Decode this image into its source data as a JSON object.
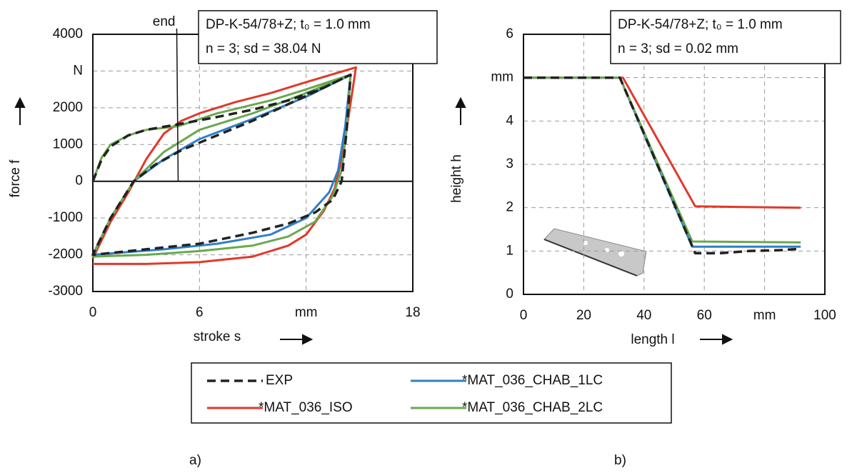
{
  "chart_data": [
    {
      "type": "line",
      "label": "a)",
      "x_label": "stroke s",
      "y_label": "force  f",
      "annotation": [
        "DP-K-54/78+Z; t₀ = 1.0 mm",
        "n = 3; sd = 38.04 N"
      ],
      "end_marker": {
        "label": "end",
        "x": 4.8
      },
      "xlim": [
        0,
        18
      ],
      "xticks": [
        0,
        6,
        {
          "value": 12,
          "label": "mm"
        },
        18
      ],
      "ylim": [
        -3000,
        4000
      ],
      "yticks": [
        -3000,
        -2000,
        -1000,
        0,
        1000,
        2000,
        {
          "value": 3000,
          "label": "N"
        },
        4000
      ],
      "grid": true,
      "series": [
        {
          "name": "*MAT_036_ISO",
          "color": "#e0392b",
          "dash": false,
          "x": [
            0,
            1,
            2,
            3,
            4,
            5,
            6,
            8,
            10,
            12,
            14.8,
            14.4,
            14.0,
            13.6,
            13,
            12,
            11,
            9,
            6,
            3,
            0
          ],
          "values": [
            -2100,
            -1100,
            -300,
            600,
            1300,
            1650,
            1850,
            2150,
            2400,
            2700,
            3100,
            1800,
            600,
            -200,
            -800,
            -1450,
            -1750,
            -2050,
            -2200,
            -2250,
            -2250
          ]
        },
        {
          "name": "*MAT_036_CHAB_1LC",
          "color": "#2f7fc9",
          "dash": false,
          "x": [
            0,
            1,
            2.3,
            4,
            6,
            9,
            12,
            14.5,
            14.2,
            13.8,
            13.3,
            12,
            10,
            7,
            4,
            0
          ],
          "values": [
            -2000,
            -1000,
            0,
            600,
            1150,
            1700,
            2300,
            2900,
            1500,
            300,
            -300,
            -1000,
            -1450,
            -1700,
            -1850,
            -2000
          ]
        },
        {
          "name": "*MAT_036_CHAB_2LC",
          "color": "#6aa84f",
          "dash": false,
          "x": [
            0,
            0.5,
            1,
            2,
            3,
            4.8,
            7,
            10,
            12,
            14.5,
            14.3,
            14,
            13.5,
            12.5,
            11,
            9,
            6,
            3,
            0,
            0.5,
            1,
            2.3,
            4,
            6,
            9,
            12,
            14.5
          ],
          "values": [
            0,
            650,
            1000,
            1250,
            1400,
            1500,
            1850,
            2200,
            2500,
            2900,
            1500,
            300,
            -400,
            -1100,
            -1500,
            -1750,
            -1900,
            -2000,
            -2050,
            -1500,
            -1000,
            0,
            800,
            1400,
            1850,
            2400,
            2900
          ]
        },
        {
          "name": "EXP",
          "color": "#222222",
          "dash": true,
          "x": [
            0,
            0.5,
            1,
            2,
            3,
            4.8,
            7,
            9,
            11,
            13,
            14.5,
            14.3,
            14.0,
            13.5,
            12.5,
            11,
            9,
            6,
            3,
            0,
            0.5,
            1,
            2.3,
            3.5,
            5,
            7,
            9,
            11,
            13,
            14.5
          ],
          "values": [
            0,
            600,
            950,
            1250,
            1400,
            1550,
            1750,
            1950,
            2200,
            2550,
            2900,
            1500,
            0,
            -500,
            -850,
            -1150,
            -1400,
            -1700,
            -1850,
            -2000,
            -1500,
            -1000,
            0,
            450,
            850,
            1250,
            1650,
            2100,
            2550,
            2900
          ]
        }
      ]
    },
    {
      "type": "line",
      "label": "b)",
      "x_label": "length l",
      "y_label": "height h",
      "annotation": [
        "DP-K-54/78+Z; t₀ = 1.0 mm",
        "n = 3; sd = 0.02 mm"
      ],
      "xlim": [
        0,
        100
      ],
      "xticks": [
        0,
        20,
        40,
        60,
        {
          "value": 80,
          "label": "mm"
        },
        100
      ],
      "ylim": [
        0,
        6
      ],
      "yticks": [
        0,
        1,
        2,
        3,
        4,
        {
          "value": 5,
          "label": "mm"
        },
        6
      ],
      "grid": true,
      "series": [
        {
          "color": "#e0392b",
          "dash": false,
          "x": [
            0,
            33,
            57,
            92
          ],
          "values": [
            5,
            5,
            2.03,
            2.0
          ]
        },
        {
          "color": "#2f7fc9",
          "dash": false,
          "x": [
            0,
            32,
            56,
            92
          ],
          "values": [
            5,
            5,
            1.1,
            1.1
          ]
        },
        {
          "color": "#6aa84f",
          "dash": false,
          "x": [
            0,
            32,
            56,
            92
          ],
          "values": [
            5,
            5,
            1.22,
            1.2
          ]
        },
        {
          "color": "#222222",
          "dash": true,
          "x": [
            0,
            32,
            57,
            65,
            75,
            85,
            92
          ],
          "values": [
            5,
            5,
            0.95,
            0.95,
            1.0,
            1.02,
            1.05
          ]
        }
      ]
    }
  ]
}
